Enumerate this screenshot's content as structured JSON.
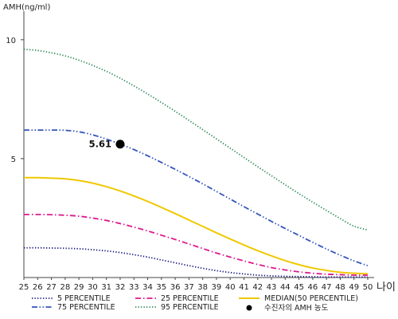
{
  "chart_data": {
    "type": "line",
    "ylabel": "AMH(ng/ml)",
    "xlabel": "나이",
    "x": [
      25,
      26,
      27,
      28,
      29,
      30,
      31,
      32,
      33,
      34,
      35,
      36,
      37,
      38,
      39,
      40,
      41,
      42,
      43,
      44,
      45,
      46,
      47,
      48,
      49,
      50
    ],
    "xlim": [
      25,
      50
    ],
    "ylim": [
      0,
      11
    ],
    "yticks": [
      5,
      10
    ],
    "grid": false,
    "legend_position": "bottom",
    "series": [
      {
        "name": "5 PERCENTILE",
        "color": "#1a1a80",
        "style": "dotted",
        "values": [
          1.25,
          1.25,
          1.24,
          1.23,
          1.21,
          1.17,
          1.12,
          1.05,
          0.96,
          0.86,
          0.74,
          0.62,
          0.5,
          0.39,
          0.29,
          0.21,
          0.15,
          0.1,
          0.07,
          0.05,
          0.04,
          0.03,
          0.02,
          0.02,
          0.02,
          0.02
        ]
      },
      {
        "name": "25 PERCENTILE",
        "color": "#dd1a8c",
        "style": "dashdot",
        "values": [
          2.65,
          2.65,
          2.64,
          2.62,
          2.58,
          2.5,
          2.4,
          2.27,
          2.12,
          1.96,
          1.78,
          1.6,
          1.41,
          1.22,
          1.03,
          0.86,
          0.7,
          0.55,
          0.42,
          0.32,
          0.24,
          0.18,
          0.14,
          0.12,
          0.1,
          0.1
        ]
      },
      {
        "name": "MEDIAN(50 PERCENTILE)",
        "color": "#f0c800",
        "style": "solid",
        "values": [
          4.2,
          4.2,
          4.18,
          4.15,
          4.08,
          3.97,
          3.82,
          3.64,
          3.43,
          3.2,
          2.95,
          2.69,
          2.42,
          2.15,
          1.88,
          1.62,
          1.37,
          1.13,
          0.91,
          0.71,
          0.54,
          0.4,
          0.3,
          0.22,
          0.18,
          0.16
        ]
      },
      {
        "name": "75 PERCENTILE",
        "color": "#3355bb",
        "style": "dashdotdot",
        "values": [
          6.2,
          6.2,
          6.2,
          6.19,
          6.13,
          6.0,
          5.82,
          5.61,
          5.38,
          5.12,
          4.84,
          4.55,
          4.25,
          3.94,
          3.62,
          3.3,
          2.98,
          2.67,
          2.36,
          2.06,
          1.77,
          1.48,
          1.2,
          0.94,
          0.7,
          0.5
        ]
      },
      {
        "name": "95 PERCENTILE",
        "color": "#2e8b57",
        "style": "dotted",
        "values": [
          9.6,
          9.55,
          9.45,
          9.32,
          9.14,
          8.92,
          8.67,
          8.38,
          8.06,
          7.72,
          7.36,
          6.99,
          6.61,
          6.22,
          5.83,
          5.44,
          5.05,
          4.66,
          4.28,
          3.9,
          3.53,
          3.17,
          2.82,
          2.48,
          2.16,
          2.0
        ]
      }
    ],
    "marker": {
      "name": "수진자의 AMH 농도",
      "x": 32,
      "y": 5.61,
      "label": "5.61",
      "color": "#000000"
    }
  }
}
